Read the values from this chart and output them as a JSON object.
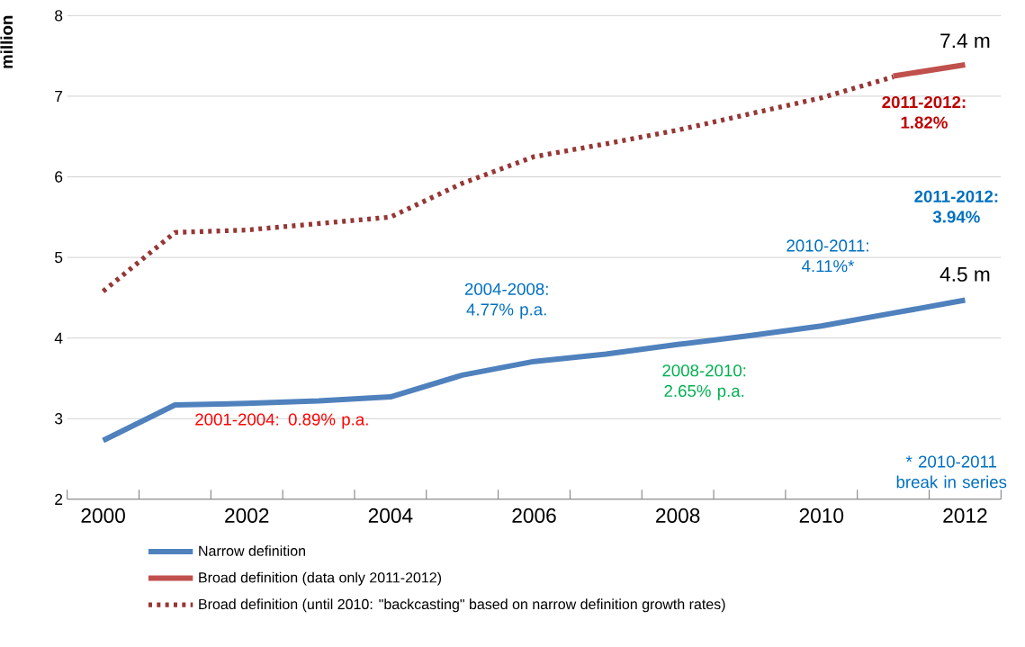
{
  "chart_data": {
    "type": "line",
    "ylabel": "million",
    "categories": [
      "2000",
      null,
      "2002",
      null,
      "2004",
      null,
      "2006",
      null,
      "2008",
      null,
      "2010",
      null,
      "2012"
    ],
    "series": [
      {
        "name": "Narrow definition",
        "color": "#4f81bd",
        "line_style": "solid",
        "values": [
          2.73,
          3.17,
          3.19,
          3.22,
          3.27,
          3.54,
          3.71,
          3.8,
          3.92,
          4.03,
          4.15,
          4.31,
          4.47
        ]
      },
      {
        "name": "Broad definition (data only 2011-2012)",
        "color": "#c0504d",
        "line_style": "solid",
        "values": [
          null,
          null,
          null,
          null,
          null,
          null,
          null,
          null,
          null,
          null,
          null,
          7.25,
          7.39
        ]
      },
      {
        "name": "Broad definition (until 2010: \"backcasting\" based on narrow definition growth rates)",
        "color": "#953735",
        "line_style": "dotted",
        "values": [
          4.58,
          5.31,
          5.34,
          5.42,
          5.5,
          5.92,
          6.25,
          6.41,
          6.58,
          6.78,
          6.98,
          7.24,
          null
        ]
      }
    ],
    "ylim": [
      2,
      8
    ],
    "yticks": [
      2,
      3,
      4,
      5,
      6,
      7,
      8
    ],
    "grid": "y",
    "legend": "bottom",
    "marker": "none",
    "annotations": [
      {
        "text": "7.4 m",
        "x": "2012",
        "y": 7.4
      },
      {
        "text": "4.5 m",
        "x": "2012",
        "y": 4.5
      },
      "2011-2012: 1.82%",
      "2011-2012: 3.94%",
      "2010-2011: 4.11%*",
      "2004-2008: 4.77% p.a.",
      "2008-2010: 2.65% p.a.",
      "2001-2004: 0.89% p.a.",
      "* 2010-2011 break in series"
    ]
  }
}
